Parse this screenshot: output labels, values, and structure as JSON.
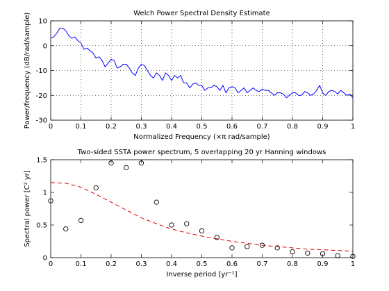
{
  "chart_data": [
    {
      "type": "line",
      "title": "Welch Power Spectral Density Estimate",
      "xlabel": "Normalized Frequency (×π rad/sample)",
      "ylabel": "Power/frequency (dB/rad/sample)",
      "xlim": [
        0,
        1
      ],
      "xticks": [
        0,
        0.1,
        0.2,
        0.3,
        0.4,
        0.5,
        0.6,
        0.7,
        0.8,
        0.9,
        1
      ],
      "ylim": [
        -30,
        10
      ],
      "yticks": [
        -30,
        -20,
        -10,
        0,
        10
      ],
      "grid": true,
      "series": [
        {
          "type": "line",
          "color": "#0000ff",
          "x": [
            0,
            0.01,
            0.02,
            0.03,
            0.04,
            0.05,
            0.06,
            0.07,
            0.08,
            0.09,
            0.1,
            0.11,
            0.12,
            0.13,
            0.14,
            0.15,
            0.16,
            0.17,
            0.18,
            0.19,
            0.2,
            0.21,
            0.22,
            0.23,
            0.24,
            0.25,
            0.26,
            0.27,
            0.28,
            0.29,
            0.3,
            0.31,
            0.32,
            0.33,
            0.34,
            0.35,
            0.36,
            0.37,
            0.38,
            0.39,
            0.4,
            0.41,
            0.42,
            0.43,
            0.44,
            0.45,
            0.46,
            0.47,
            0.48,
            0.49,
            0.5,
            0.51,
            0.52,
            0.53,
            0.54,
            0.55,
            0.56,
            0.57,
            0.58,
            0.59,
            0.6,
            0.61,
            0.62,
            0.63,
            0.64,
            0.65,
            0.66,
            0.67,
            0.68,
            0.69,
            0.7,
            0.71,
            0.72,
            0.73,
            0.74,
            0.75,
            0.76,
            0.77,
            0.78,
            0.79,
            0.8,
            0.81,
            0.82,
            0.83,
            0.84,
            0.85,
            0.86,
            0.87,
            0.88,
            0.89,
            0.9,
            0.91,
            0.92,
            0.93,
            0.94,
            0.95,
            0.96,
            0.97,
            0.98,
            0.99,
            1
          ],
          "values": [
            3,
            3.5,
            5,
            7,
            7,
            6,
            4,
            3,
            3.5,
            2,
            1,
            -1.5,
            -1,
            -2,
            -3,
            -5,
            -4.5,
            -6,
            -8.5,
            -7,
            -5.5,
            -6,
            -9,
            -8.5,
            -7.5,
            -7.5,
            -9,
            -11,
            -12,
            -9,
            -7.5,
            -8,
            -10,
            -12,
            -13,
            -11,
            -12,
            -14,
            -11,
            -12,
            -14,
            -12,
            -13,
            -12,
            -15,
            -15,
            -17,
            -15.5,
            -15,
            -16,
            -16,
            -18,
            -17,
            -17,
            -16,
            -16.5,
            -18,
            -16,
            -19,
            -17,
            -16.5,
            -17,
            -19,
            -18,
            -17,
            -19,
            -18,
            -17,
            -18,
            -18.5,
            -17.5,
            -18,
            -18,
            -19,
            -20,
            -19,
            -19,
            -19.5,
            -21,
            -20,
            -19,
            -19,
            -20,
            -20,
            -18.5,
            -19,
            -20,
            -19.5,
            -18,
            -16,
            -19,
            -20,
            -18.5,
            -18,
            -18.5,
            -19.5,
            -18,
            -19,
            -20,
            -19.5,
            -21
          ]
        }
      ]
    },
    {
      "type": "scatter",
      "title": "Two-sided SSTA power spectrum, 5 overlapping 20 yr Hanning windows",
      "xlabel": "Inverse period [yr⁻¹]",
      "ylabel": "Spectral power [C² yr]",
      "xlim": [
        0,
        1
      ],
      "xticks": [
        0,
        0.1,
        0.2,
        0.3,
        0.4,
        0.5,
        0.6,
        0.7,
        0.8,
        0.9,
        1
      ],
      "ylim": [
        0,
        1.5
      ],
      "yticks": [
        0,
        0.5,
        1,
        1.5
      ],
      "grid": false,
      "series": [
        {
          "type": "scatter",
          "color": "#000000",
          "x": [
            0,
            0.05,
            0.1,
            0.15,
            0.2,
            0.25,
            0.3,
            0.35,
            0.4,
            0.45,
            0.5,
            0.55,
            0.6,
            0.65,
            0.7,
            0.75,
            0.8,
            0.85,
            0.9,
            0.95,
            1
          ],
          "values": [
            0.87,
            0.44,
            0.57,
            1.07,
            1.45,
            1.38,
            1.45,
            0.85,
            0.5,
            0.52,
            0.41,
            0.31,
            0.15,
            0.17,
            0.19,
            0.15,
            0.09,
            0.07,
            0.06,
            0.03,
            0.02
          ]
        },
        {
          "type": "line",
          "color": "#dd0000",
          "dashed": true,
          "x": [
            0,
            0.05,
            0.1,
            0.15,
            0.2,
            0.25,
            0.3,
            0.35,
            0.4,
            0.45,
            0.5,
            0.55,
            0.6,
            0.65,
            0.7,
            0.75,
            0.8,
            0.85,
            0.9,
            0.95,
            1
          ],
          "values": [
            1.15,
            1.14,
            1.08,
            0.97,
            0.85,
            0.73,
            0.61,
            0.52,
            0.44,
            0.38,
            0.33,
            0.29,
            0.25,
            0.22,
            0.19,
            0.17,
            0.15,
            0.13,
            0.12,
            0.11,
            0.1
          ]
        }
      ]
    }
  ]
}
